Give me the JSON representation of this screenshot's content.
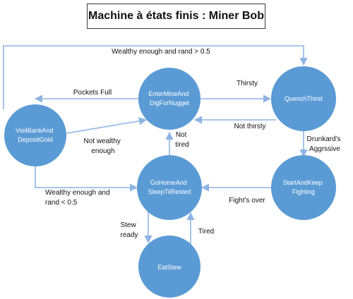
{
  "title": "Machine à états finis : Miner Bob",
  "colors": {
    "state_fill": "#5b9bd5",
    "state_text": "#ffffff",
    "edge": "#8eb4e3",
    "label_text": "#111111",
    "title_border": "#3a3a3a"
  },
  "states": {
    "enter_mine": [
      "EnterMineAnd",
      "DigForNugget"
    ],
    "quench_thirst": [
      "QuenchThirst"
    ],
    "visit_bank": [
      "VisitBankAnd",
      "DepositGold"
    ],
    "go_home": [
      "GoHomeAnd",
      "SleepTilRested"
    ],
    "start_fighting": [
      "StartAndKeep",
      "Fighting"
    ],
    "eat_stew": [
      "EatStew"
    ]
  },
  "transitions": {
    "wealthy_rand_gt": [
      "Wealthy enough and rand > 0.5"
    ],
    "pockets_full": [
      "Pockets Full"
    ],
    "thirsty": [
      "Thirsty"
    ],
    "not_thirsty": [
      "Not thirsty"
    ],
    "not_wealthy": [
      "Not wealthy",
      "enough"
    ],
    "drunkard": [
      "Drunkard’s",
      "Aggrssive"
    ],
    "not_tired": [
      "Not",
      "tired"
    ],
    "wealthy_rand_lt": [
      "Wealthy enough and",
      "rand < 0.5"
    ],
    "fights_over": [
      "Fight’s over"
    ],
    "stew_ready": [
      "Stew",
      "ready"
    ],
    "tired": [
      "Tired"
    ]
  }
}
